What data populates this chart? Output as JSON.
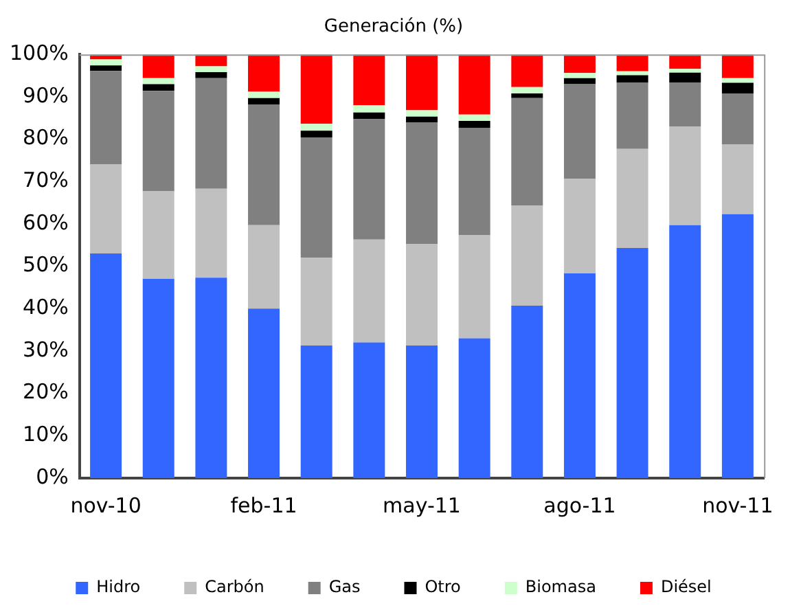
{
  "chart_data": {
    "type": "bar",
    "title": "Generación (%)",
    "stacked": true,
    "categories": [
      "nov-10",
      null,
      null,
      "feb-11",
      null,
      null,
      "may-11",
      null,
      null,
      "ago-11",
      null,
      null,
      "nov-11"
    ],
    "series": [
      {
        "name": "Hidro",
        "color": "#3366ff",
        "values": [
          53,
          47,
          47.3,
          40,
          31.3,
          32,
          31.3,
          33,
          40.7,
          48.3,
          54.3,
          59.7,
          62.3
        ]
      },
      {
        "name": "Carbón",
        "color": "#c0c0c0",
        "values": [
          21,
          20.7,
          21,
          19.7,
          20.7,
          24.3,
          24,
          24.3,
          23.6,
          22.4,
          23.4,
          23.3,
          16.4
        ]
      },
      {
        "name": "Gas",
        "color": "#808080",
        "values": [
          22.1,
          23.7,
          26.1,
          28.4,
          28.4,
          28.5,
          28.7,
          25.4,
          25.4,
          22.3,
          15.6,
          10.3,
          12
        ]
      },
      {
        "name": "Otro",
        "color": "#000000",
        "values": [
          1.3,
          1.6,
          1.4,
          1.6,
          1.6,
          1.5,
          1.3,
          1.6,
          1.1,
          1.4,
          1.8,
          2.4,
          2.6
        ]
      },
      {
        "name": "Biomasa",
        "color": "#ccffcc",
        "values": [
          1.4,
          1.4,
          1.4,
          1.5,
          1.6,
          1.7,
          1.5,
          1.5,
          1.5,
          1.2,
          0.9,
          0.9,
          1.1
        ]
      },
      {
        "name": "Diésel",
        "color": "#ff0000",
        "values": [
          1.2,
          5.6,
          2.8,
          8.8,
          16.4,
          12,
          13.2,
          14.2,
          7.7,
          4.4,
          4,
          3.4,
          5.6
        ]
      }
    ],
    "ylim": [
      0,
      100
    ],
    "yticks": [
      {
        "value": 0,
        "label": "0%"
      },
      {
        "value": 10,
        "label": "10%"
      },
      {
        "value": 20,
        "label": "20%"
      },
      {
        "value": 30,
        "label": "30%"
      },
      {
        "value": 40,
        "label": "40%"
      },
      {
        "value": 50,
        "label": "50%"
      },
      {
        "value": 60,
        "label": "60%"
      },
      {
        "value": 70,
        "label": "70%"
      },
      {
        "value": 80,
        "label": "80%"
      },
      {
        "value": 90,
        "label": "90%"
      },
      {
        "value": 100,
        "label": "100%"
      }
    ],
    "grid": false,
    "legend": "bottom"
  }
}
